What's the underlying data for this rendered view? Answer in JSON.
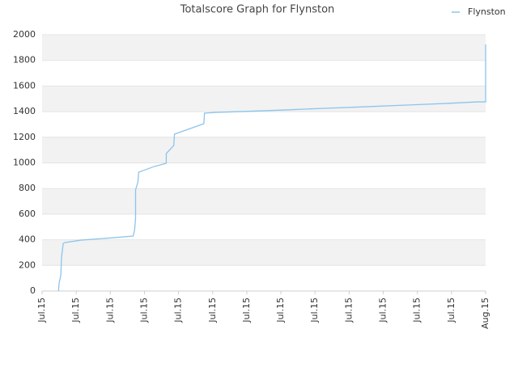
{
  "chart_data": {
    "type": "line",
    "title": "Totalscore Graph for Flynston",
    "x": [
      0.48,
      0.5,
      0.55,
      0.57,
      0.62,
      0.67,
      1.14,
      2.1,
      2.67,
      2.71,
      2.74,
      2.74,
      2.81,
      2.83,
      3.29,
      3.64,
      3.64,
      3.86,
      3.88,
      4.74,
      4.76,
      5.07,
      5.9,
      7.1,
      8.29,
      9.48,
      10.67,
      11.86,
      12.76,
      13,
      13,
      13
    ],
    "series": [
      {
        "name": "Flynston",
        "color": "#8cc4ec",
        "values": [
          0,
          63,
          126,
          265,
          372,
          378,
          397,
          416,
          429,
          473,
          568,
          789,
          852,
          927,
          972,
          997,
          1073,
          1136,
          1224,
          1306,
          1388,
          1394,
          1401,
          1413,
          1426,
          1438,
          1451,
          1464,
          1476,
          1476,
          1741,
          1924
        ]
      }
    ],
    "xlim": [
      0,
      13
    ],
    "xticks": [
      {
        "value": 0,
        "label": "Jul.15"
      },
      {
        "value": 1,
        "label": "Jul.15"
      },
      {
        "value": 2,
        "label": "Jul.15"
      },
      {
        "value": 3,
        "label": "Jul.15"
      },
      {
        "value": 4,
        "label": "Jul.15"
      },
      {
        "value": 5,
        "label": "Jul.15"
      },
      {
        "value": 6,
        "label": "Jul.15"
      },
      {
        "value": 7,
        "label": "Jul.15"
      },
      {
        "value": 8,
        "label": "Jul.15"
      },
      {
        "value": 9,
        "label": "Jul.15"
      },
      {
        "value": 10,
        "label": "Jul.15"
      },
      {
        "value": 11,
        "label": "Jul.15"
      },
      {
        "value": 12,
        "label": "Jul.15"
      },
      {
        "value": 13,
        "label": "Aug.15"
      }
    ],
    "ylim": [
      0,
      2000
    ],
    "yticks": [
      0,
      200,
      400,
      600,
      800,
      1000,
      1200,
      1400,
      1600,
      1800,
      2000
    ],
    "grid": true,
    "banded_grid": true,
    "legend": "top-right"
  }
}
